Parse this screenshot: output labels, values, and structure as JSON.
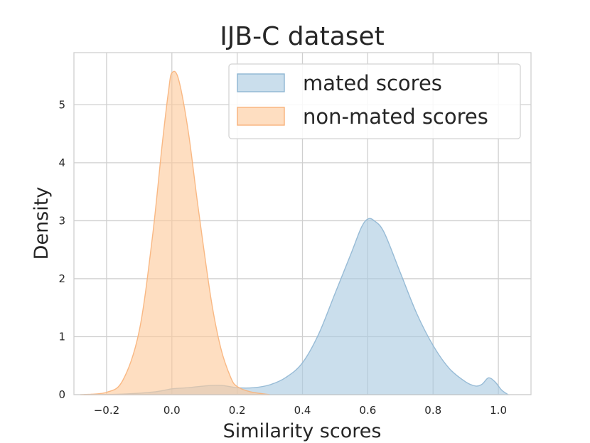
{
  "chart_data": {
    "type": "area",
    "title": "IJB-C dataset",
    "xlabel": "Similarity scores",
    "ylabel": "Density",
    "xlim": [
      -0.3,
      1.1
    ],
    "ylim": [
      0,
      5.9
    ],
    "grid": true,
    "legend_position": "top-right",
    "x_ticks": [
      {
        "value": -0.2,
        "label": "−0.2"
      },
      {
        "value": 0.0,
        "label": "0.0"
      },
      {
        "value": 0.2,
        "label": "0.2"
      },
      {
        "value": 0.4,
        "label": "0.4"
      },
      {
        "value": 0.6,
        "label": "0.6"
      },
      {
        "value": 0.8,
        "label": "0.8"
      },
      {
        "value": 1.0,
        "label": "1.0"
      }
    ],
    "y_ticks": [
      {
        "value": 0,
        "label": "0"
      },
      {
        "value": 1,
        "label": "1"
      },
      {
        "value": 2,
        "label": "2"
      },
      {
        "value": 3,
        "label": "3"
      },
      {
        "value": 4,
        "label": "4"
      },
      {
        "value": 5,
        "label": "5"
      }
    ],
    "series": [
      {
        "name": "mated scores",
        "color": "#a9c9e0",
        "edge_color": "#8fb6d3",
        "points": [
          [
            -0.27,
            0.0
          ],
          [
            -0.15,
            0.01
          ],
          [
            -0.05,
            0.05
          ],
          [
            0.0,
            0.1
          ],
          [
            0.05,
            0.12
          ],
          [
            0.1,
            0.15
          ],
          [
            0.15,
            0.16
          ],
          [
            0.2,
            0.12
          ],
          [
            0.25,
            0.12
          ],
          [
            0.3,
            0.17
          ],
          [
            0.35,
            0.3
          ],
          [
            0.4,
            0.55
          ],
          [
            0.45,
            1.05
          ],
          [
            0.5,
            1.75
          ],
          [
            0.55,
            2.45
          ],
          [
            0.58,
            2.88
          ],
          [
            0.6,
            3.03
          ],
          [
            0.62,
            3.0
          ],
          [
            0.65,
            2.8
          ],
          [
            0.7,
            2.1
          ],
          [
            0.75,
            1.4
          ],
          [
            0.8,
            0.85
          ],
          [
            0.85,
            0.45
          ],
          [
            0.9,
            0.22
          ],
          [
            0.93,
            0.15
          ],
          [
            0.95,
            0.18
          ],
          [
            0.97,
            0.29
          ],
          [
            0.99,
            0.22
          ],
          [
            1.01,
            0.08
          ],
          [
            1.03,
            0.0
          ]
        ]
      },
      {
        "name": "non-mated scores",
        "color": "#fdc99b",
        "edge_color": "#f8b27a",
        "points": [
          [
            -0.28,
            0.0
          ],
          [
            -0.2,
            0.04
          ],
          [
            -0.15,
            0.25
          ],
          [
            -0.1,
            1.1
          ],
          [
            -0.06,
            2.7
          ],
          [
            -0.03,
            4.3
          ],
          [
            -0.01,
            5.25
          ],
          [
            0.0,
            5.55
          ],
          [
            0.02,
            5.45
          ],
          [
            0.05,
            4.55
          ],
          [
            0.08,
            3.25
          ],
          [
            0.12,
            1.65
          ],
          [
            0.15,
            0.8
          ],
          [
            0.18,
            0.3
          ],
          [
            0.2,
            0.14
          ],
          [
            0.24,
            0.05
          ],
          [
            0.3,
            0.0
          ]
        ]
      }
    ]
  }
}
